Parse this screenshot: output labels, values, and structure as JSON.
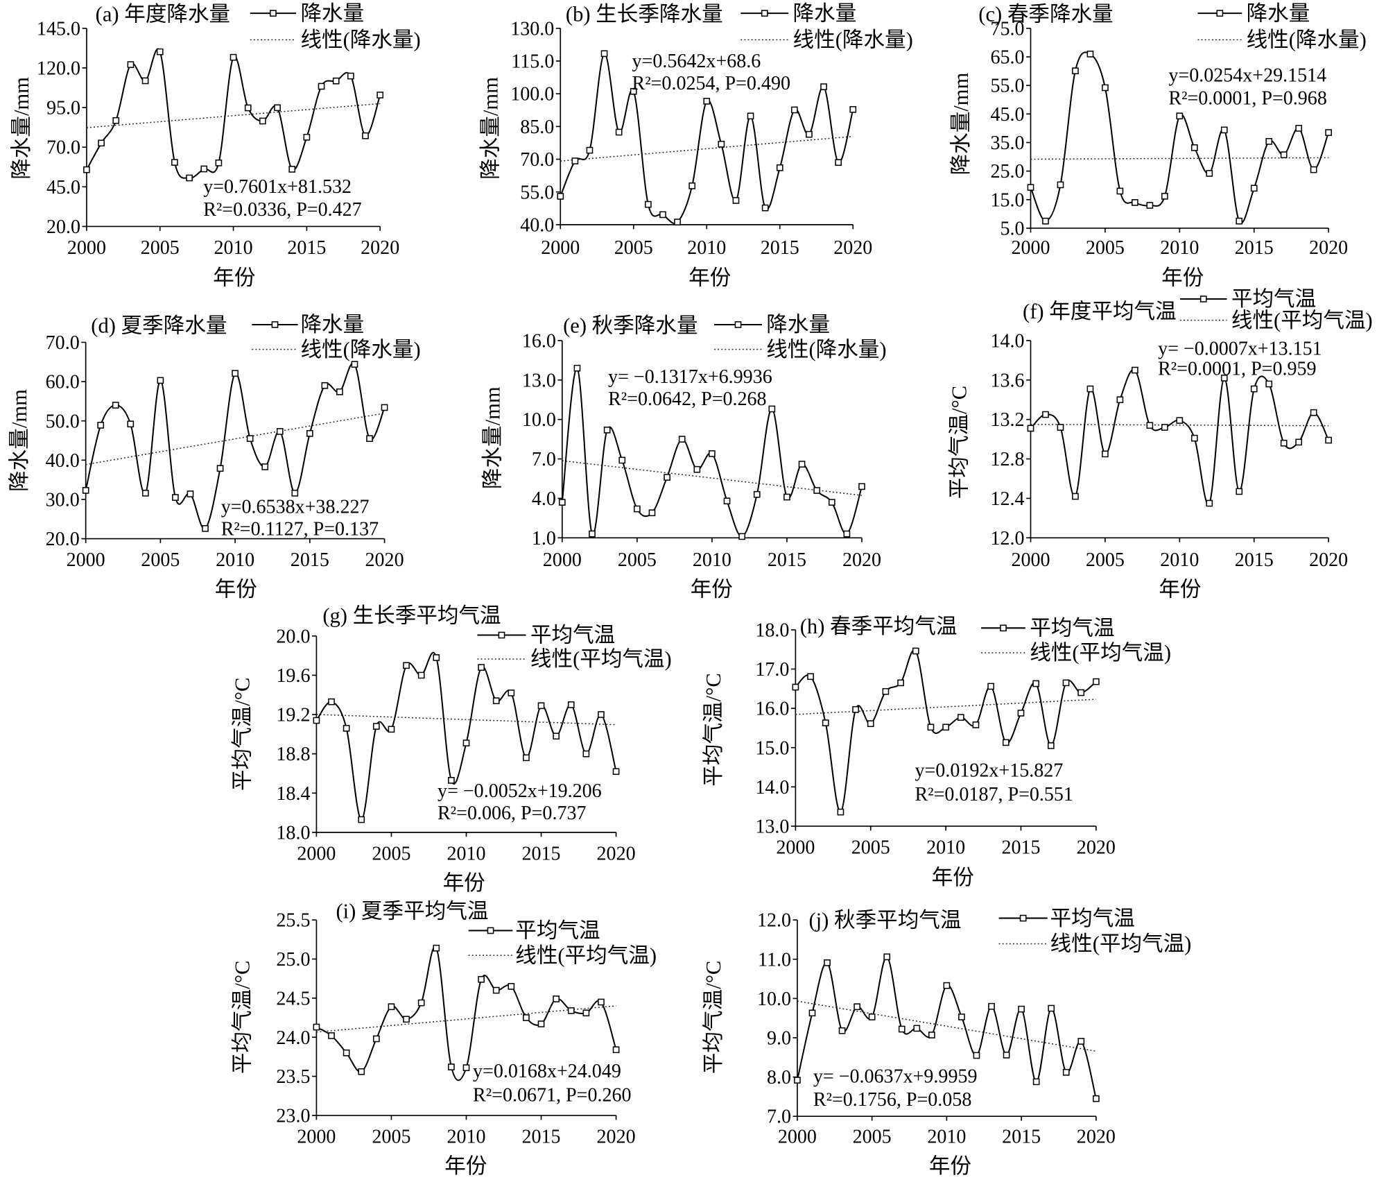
{
  "chart_data": [
    {
      "type": "line",
      "title": "(a) 年度降水量",
      "xlabel": "年份",
      "ylabel": "降水量/mm",
      "x": [
        2000,
        2001,
        2002,
        2003,
        2004,
        2005,
        2006,
        2007,
        2008,
        2009,
        2010,
        2011,
        2012,
        2013,
        2014,
        2015,
        2016,
        2017,
        2018,
        2019,
        2020
      ],
      "xlim": [
        2000,
        2020
      ],
      "xticks": [
        "2000",
        "2005",
        "2010",
        "2015",
        "2020"
      ],
      "yticks": [
        "145.0",
        "120.0",
        "95.0",
        "70.0",
        "45.0",
        "20.0"
      ],
      "ylim": [
        20,
        145
      ],
      "grid": false,
      "series": [
        {
          "name": "降水量",
          "values": [
            55.8,
            72.6,
            86.8,
            122.1,
            111.9,
            130.2,
            60.4,
            50.6,
            56.3,
            60.1,
            126.7,
            94.8,
            86.5,
            94.9,
            56.1,
            76.3,
            108.4,
            111.8,
            114.9,
            77.2,
            102.9
          ]
        }
      ],
      "trend": {
        "name": "线性(降水量)",
        "slope": 0.7601,
        "intercept": 81.532
      },
      "equation": "y=0.7601x+81.532",
      "stats": "R²=0.0336, P=0.427"
    },
    {
      "type": "line",
      "title": "(b) 生长季降水量",
      "xlabel": "年份",
      "ylabel": "降水量/mm",
      "x": [
        2000,
        2001,
        2002,
        2003,
        2004,
        2005,
        2006,
        2007,
        2008,
        2009,
        2010,
        2011,
        2012,
        2013,
        2014,
        2015,
        2016,
        2017,
        2018,
        2019,
        2020
      ],
      "xlim": [
        2000,
        2020
      ],
      "xticks": [
        "2000",
        "2005",
        "2010",
        "2015",
        "2020"
      ],
      "yticks": [
        "130.0",
        "115.0",
        "100.0",
        "85.0",
        "70.0",
        "55.0",
        "40.0"
      ],
      "ylim": [
        40,
        130
      ],
      "grid": false,
      "series": [
        {
          "name": "降水量",
          "values": [
            53.0,
            69.2,
            74.1,
            118.4,
            82.4,
            101.1,
            49.3,
            44.6,
            41.2,
            57.8,
            96.6,
            76.9,
            51.1,
            89.8,
            47.7,
            66.1,
            92.6,
            81.4,
            103.2,
            68.5,
            92.8
          ]
        }
      ],
      "trend": {
        "name": "线性(降水量)",
        "slope": 0.5642,
        "intercept": 68.6
      },
      "equation": "y=0.5642x+68.6",
      "stats": "R²=0.0254, P=0.490"
    },
    {
      "type": "line",
      "title": "(c) 春季降水量",
      "xlabel": "年份",
      "ylabel": "降水量/mm",
      "x": [
        2000,
        2001,
        2002,
        2003,
        2004,
        2005,
        2006,
        2007,
        2008,
        2009,
        2010,
        2011,
        2012,
        2013,
        2014,
        2015,
        2016,
        2017,
        2018,
        2019,
        2020
      ],
      "xlim": [
        2000,
        2020
      ],
      "xticks": [
        "2000",
        "2005",
        "2010",
        "2015",
        "2020"
      ],
      "yticks": [
        "75.0",
        "65.0",
        "55.0",
        "45.0",
        "35.0",
        "25.0",
        "15.0",
        "5.0"
      ],
      "ylim": [
        5,
        75
      ],
      "grid": false,
      "series": [
        {
          "name": "降水量",
          "values": [
            19.3,
            7.5,
            20.2,
            60.1,
            66.0,
            54.2,
            18.0,
            14.0,
            13.0,
            16.2,
            44.3,
            33.2,
            24.2,
            39.4,
            7.5,
            19.0,
            35.4,
            30.7,
            40.0,
            25.5,
            38.5
          ]
        }
      ],
      "trend": {
        "name": "线性(降水量)",
        "slope": 0.0254,
        "intercept": 29.1514
      },
      "equation": "y=0.0254x+29.1514",
      "stats": "R²=0.0001, P=0.968"
    },
    {
      "type": "line",
      "title": "(d) 夏季降水量",
      "xlabel": "年份",
      "ylabel": "降水量/mm",
      "x": [
        2000,
        2001,
        2002,
        2003,
        2004,
        2005,
        2006,
        2007,
        2008,
        2009,
        2010,
        2011,
        2012,
        2013,
        2014,
        2015,
        2016,
        2017,
        2018,
        2019,
        2020
      ],
      "xlim": [
        2000,
        2020
      ],
      "xticks": [
        "2000",
        "2005",
        "2010",
        "2015",
        "2020"
      ],
      "yticks": [
        "70.0",
        "60.0",
        "50.0",
        "40.0",
        "30.0",
        "20.0"
      ],
      "ylim": [
        20,
        70
      ],
      "grid": false,
      "series": [
        {
          "name": "降水量",
          "values": [
            32.3,
            48.9,
            54.0,
            49.2,
            31.6,
            60.3,
            30.5,
            31.4,
            22.6,
            37.9,
            62.1,
            45.5,
            38.3,
            47.3,
            31.6,
            46.8,
            59.0,
            57.4,
            64.4,
            45.5,
            53.4
          ]
        }
      ],
      "trend": {
        "name": "线性(降水量)",
        "slope": 0.6538,
        "intercept": 38.227
      },
      "equation": "y=0.6538x+38.227",
      "stats": "R²=0.1127, P=0.137"
    },
    {
      "type": "line",
      "title": "(e) 秋季降水量",
      "xlabel": "年份",
      "ylabel": "降水量/mm",
      "x": [
        2000,
        2001,
        2002,
        2003,
        2004,
        2005,
        2006,
        2007,
        2008,
        2009,
        2010,
        2011,
        2012,
        2013,
        2014,
        2015,
        2016,
        2017,
        2018,
        2019,
        2020
      ],
      "xlim": [
        2000,
        2020
      ],
      "xticks": [
        "2000",
        "2005",
        "2010",
        "2015",
        "2020"
      ],
      "yticks": [
        "16.0",
        "13.0",
        "10.0",
        "7.0",
        "4.0",
        "1.0"
      ],
      "ylim": [
        1,
        16
      ],
      "grid": false,
      "series": [
        {
          "name": "降水量",
          "values": [
            3.7,
            13.9,
            1.3,
            9.2,
            6.9,
            3.2,
            2.9,
            5.6,
            8.5,
            6.2,
            7.4,
            3.8,
            1.1,
            4.3,
            10.8,
            4.1,
            6.6,
            4.6,
            3.7,
            1.3,
            4.9
          ]
        }
      ],
      "trend": {
        "name": "线性(降水量)",
        "slope": -0.1317,
        "intercept": 6.9936
      },
      "equation": "y= −0.1317x+6.9936",
      "stats": "R²=0.0642, P=0.268"
    },
    {
      "type": "line",
      "title": "(f) 年度平均气温",
      "xlabel": "年份",
      "ylabel": "平均气温/°C",
      "x": [
        2000,
        2001,
        2002,
        2003,
        2004,
        2005,
        2006,
        2007,
        2008,
        2009,
        2010,
        2011,
        2012,
        2013,
        2014,
        2015,
        2016,
        2017,
        2018,
        2019,
        2020
      ],
      "xlim": [
        2000,
        2020
      ],
      "xticks": [
        "2000",
        "2005",
        "2010",
        "2015",
        "2020"
      ],
      "yticks": [
        "14.0",
        "13.6",
        "13.2",
        "12.8",
        "12.4",
        "12.0"
      ],
      "ylim": [
        12,
        14
      ],
      "grid": false,
      "series": [
        {
          "name": "平均气温",
          "values": [
            13.11,
            13.25,
            13.12,
            12.42,
            13.51,
            12.85,
            13.4,
            13.7,
            13.14,
            13.12,
            13.19,
            13.01,
            12.35,
            13.62,
            12.47,
            13.51,
            13.56,
            12.96,
            12.97,
            13.27,
            12.99
          ]
        }
      ],
      "trend": {
        "name": "线性(平均气温)",
        "slope": -0.0007,
        "intercept": 13.151
      },
      "equation": "y= −0.0007x+13.151",
      "stats": "R²=0.0001, P=0.959"
    },
    {
      "type": "line",
      "title": "(g) 生长季平均气温",
      "xlabel": "年份",
      "ylabel": "平均气温/°C",
      "x": [
        2000,
        2001,
        2002,
        2003,
        2004,
        2005,
        2006,
        2007,
        2008,
        2009,
        2010,
        2011,
        2012,
        2013,
        2014,
        2015,
        2016,
        2017,
        2018,
        2019,
        2020
      ],
      "xlim": [
        2000,
        2020
      ],
      "xticks": [
        "2000",
        "2005",
        "2010",
        "2015",
        "2020"
      ],
      "yticks": [
        "20.0",
        "19.6",
        "19.2",
        "18.8",
        "18.4",
        "18.0"
      ],
      "ylim": [
        18,
        20
      ],
      "grid": false,
      "series": [
        {
          "name": "平均气温",
          "values": [
            19.14,
            19.33,
            19.06,
            18.13,
            19.08,
            19.05,
            19.7,
            19.6,
            19.78,
            18.53,
            18.91,
            19.68,
            19.34,
            19.42,
            18.76,
            19.29,
            18.98,
            19.3,
            18.8,
            19.2,
            18.62
          ]
        }
      ],
      "trend": {
        "name": "线性(平均气温)",
        "slope": -0.0052,
        "intercept": 19.206
      },
      "equation": "y= −0.0052x+19.206",
      "stats": "R²=0.006, P=0.737"
    },
    {
      "type": "line",
      "title": "(h) 春季平均气温",
      "xlabel": "年份",
      "ylabel": "平均气温/°C",
      "x": [
        2000,
        2001,
        2002,
        2003,
        2004,
        2005,
        2006,
        2007,
        2008,
        2009,
        2010,
        2011,
        2012,
        2013,
        2014,
        2015,
        2016,
        2017,
        2018,
        2019,
        2020
      ],
      "xlim": [
        2000,
        2020
      ],
      "xticks": [
        "2000",
        "2005",
        "2010",
        "2015",
        "2020"
      ],
      "yticks": [
        "18.0",
        "17.0",
        "16.0",
        "15.0",
        "14.0",
        "13.0"
      ],
      "ylim": [
        13,
        18
      ],
      "grid": false,
      "series": [
        {
          "name": "平均气温",
          "values": [
            16.54,
            16.81,
            15.63,
            13.36,
            15.97,
            15.61,
            16.43,
            16.65,
            17.46,
            15.52,
            15.52,
            15.77,
            15.58,
            16.56,
            15.13,
            15.88,
            16.63,
            15.05,
            16.65,
            16.4,
            16.68
          ]
        }
      ],
      "trend": {
        "name": "线性(平均气温)",
        "slope": 0.0192,
        "intercept": 15.827
      },
      "equation": "y=0.0192x+15.827",
      "stats": "R²=0.0187, P=0.551"
    },
    {
      "type": "line",
      "title": "(i) 夏季平均气温",
      "xlabel": "年份",
      "ylabel": "平均气温/°C",
      "x": [
        2000,
        2001,
        2002,
        2003,
        2004,
        2005,
        2006,
        2007,
        2008,
        2009,
        2010,
        2011,
        2012,
        2013,
        2014,
        2015,
        2016,
        2017,
        2018,
        2019,
        2020
      ],
      "xlim": [
        2000,
        2020
      ],
      "xticks": [
        "2000",
        "2005",
        "2010",
        "2015",
        "2020"
      ],
      "yticks": [
        "25.5",
        "25.0",
        "24.5",
        "24.0",
        "23.5",
        "23.0"
      ],
      "ylim": [
        23,
        25.5
      ],
      "grid": false,
      "series": [
        {
          "name": "平均气温",
          "values": [
            24.13,
            24.02,
            23.8,
            23.56,
            23.98,
            24.39,
            24.23,
            24.44,
            25.14,
            23.62,
            23.61,
            24.74,
            24.6,
            24.65,
            24.25,
            24.17,
            24.49,
            24.34,
            24.31,
            24.45,
            23.84
          ]
        }
      ],
      "trend": {
        "name": "线性(平均气温)",
        "slope": 0.0168,
        "intercept": 24.049
      },
      "equation": "y=0.0168x+24.049",
      "stats": "R²=0.0671, P=0.260"
    },
    {
      "type": "line",
      "title": "(j) 秋季平均气温",
      "xlabel": "年份",
      "ylabel": "平均气温/°C",
      "x": [
        2000,
        2001,
        2002,
        2003,
        2004,
        2005,
        2006,
        2007,
        2008,
        2009,
        2010,
        2011,
        2012,
        2013,
        2014,
        2015,
        2016,
        2017,
        2018,
        2019,
        2020
      ],
      "xlim": [
        2000,
        2020
      ],
      "xticks": [
        "2000",
        "2005",
        "2010",
        "2015",
        "2020"
      ],
      "yticks": [
        "12.0",
        "11.0",
        "10.0",
        "9.0",
        "8.0",
        "7.0"
      ],
      "ylim": [
        7,
        12
      ],
      "grid": false,
      "series": [
        {
          "name": "平均气温",
          "values": [
            7.92,
            9.63,
            10.91,
            9.18,
            9.79,
            9.53,
            11.06,
            9.22,
            9.24,
            9.07,
            10.33,
            9.53,
            8.55,
            9.8,
            8.56,
            9.73,
            7.88,
            9.75,
            8.12,
            8.91,
            7.45
          ]
        }
      ],
      "trend": {
        "name": "线性(平均气温)",
        "slope": -0.0637,
        "intercept": 9.9959
      },
      "equation": "y= −0.0637x+9.9959",
      "stats": "R²=0.1756, P=0.058"
    }
  ]
}
